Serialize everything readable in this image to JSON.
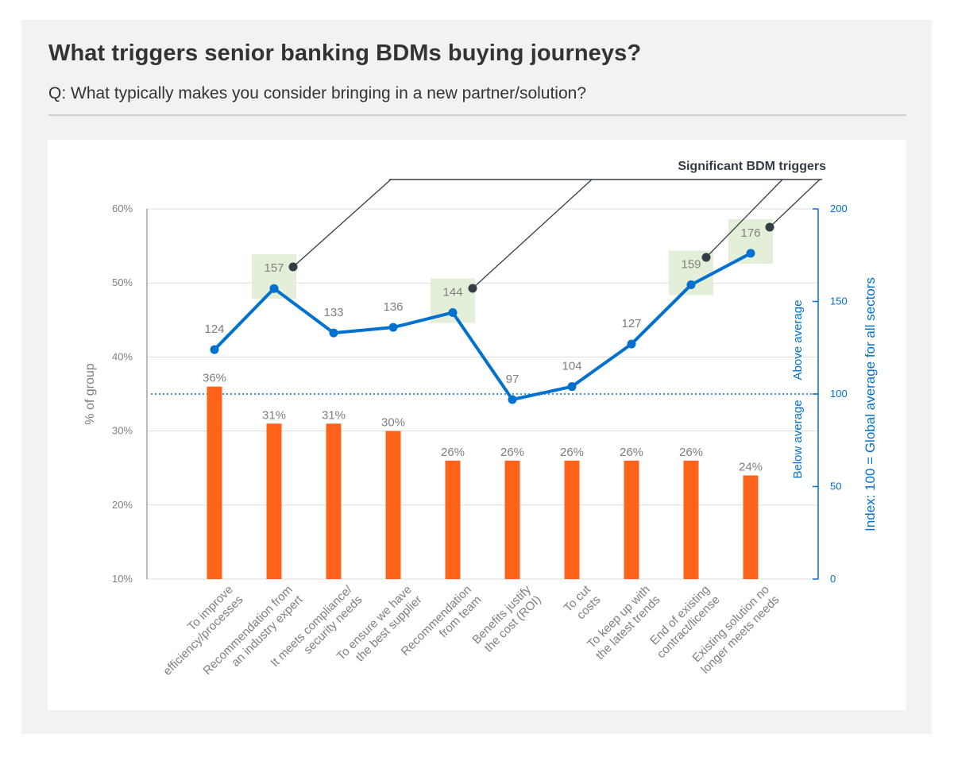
{
  "title": "What triggers senior banking BDMs buying journeys?",
  "subtitle": "Q: What typically makes you consider bringing in a new partner/solution?",
  "colors": {
    "bar": "#ff6319",
    "line": "#0071ce",
    "highlight": "#e3efd9",
    "axis": "#888888",
    "text": "#7f7f7f",
    "dark": "#333d47"
  },
  "chart_data": {
    "type": "bar",
    "categories": [
      [
        "To improve",
        "efficiency/processes"
      ],
      [
        "Recommendation from",
        "an industry expert"
      ],
      [
        "It meets compliance/",
        "security needs"
      ],
      [
        "To ensure we have",
        "the best supplier"
      ],
      [
        "Recommendation",
        "from team"
      ],
      [
        "Benefits justify",
        "the cost (ROI)"
      ],
      [
        "To cut",
        "costs"
      ],
      [
        "To keep up with",
        "the latest trends"
      ],
      [
        "End of existing",
        "contract/license"
      ],
      [
        "Existing solution no",
        "longer meets needs"
      ]
    ],
    "series": [
      {
        "type": "bar",
        "axis": "left",
        "values": [
          36,
          31,
          31,
          30,
          26,
          26,
          26,
          26,
          26,
          24
        ],
        "labels": [
          "36%",
          "31%",
          "31%",
          "30%",
          "26%",
          "26%",
          "26%",
          "26%",
          "26%",
          "24%"
        ]
      },
      {
        "type": "line",
        "axis": "right",
        "values": [
          124,
          157,
          133,
          136,
          144,
          97,
          104,
          127,
          159,
          176
        ],
        "labels": [
          "124",
          "157",
          "133",
          "136",
          "144",
          "97",
          "104",
          "127",
          "159",
          "176"
        ]
      }
    ],
    "highlighted": [
      1,
      4,
      8,
      9
    ],
    "annotation": "Significant BDM triggers",
    "y_left": {
      "label": "% of group",
      "ylim": [
        10,
        60
      ],
      "ticks": [
        {
          "v": 10,
          "t": "10%"
        },
        {
          "v": 20,
          "t": "20%"
        },
        {
          "v": 30,
          "t": "30%"
        },
        {
          "v": 40,
          "t": "40%"
        },
        {
          "v": 50,
          "t": "50%"
        },
        {
          "v": 60,
          "t": "60%"
        }
      ]
    },
    "y_right": {
      "label": "Index: 100 = Global average for all sectors",
      "ylim": [
        0,
        200
      ],
      "ticks": [
        {
          "v": 0,
          "t": "0"
        },
        {
          "v": 50,
          "t": "50"
        },
        {
          "v": 100,
          "t": "100"
        },
        {
          "v": 150,
          "t": "150"
        },
        {
          "v": 200,
          "t": "200"
        }
      ]
    },
    "reference_line": {
      "value": 100,
      "above_label": "Above average",
      "below_label": "Below average"
    },
    "grid": true
  }
}
